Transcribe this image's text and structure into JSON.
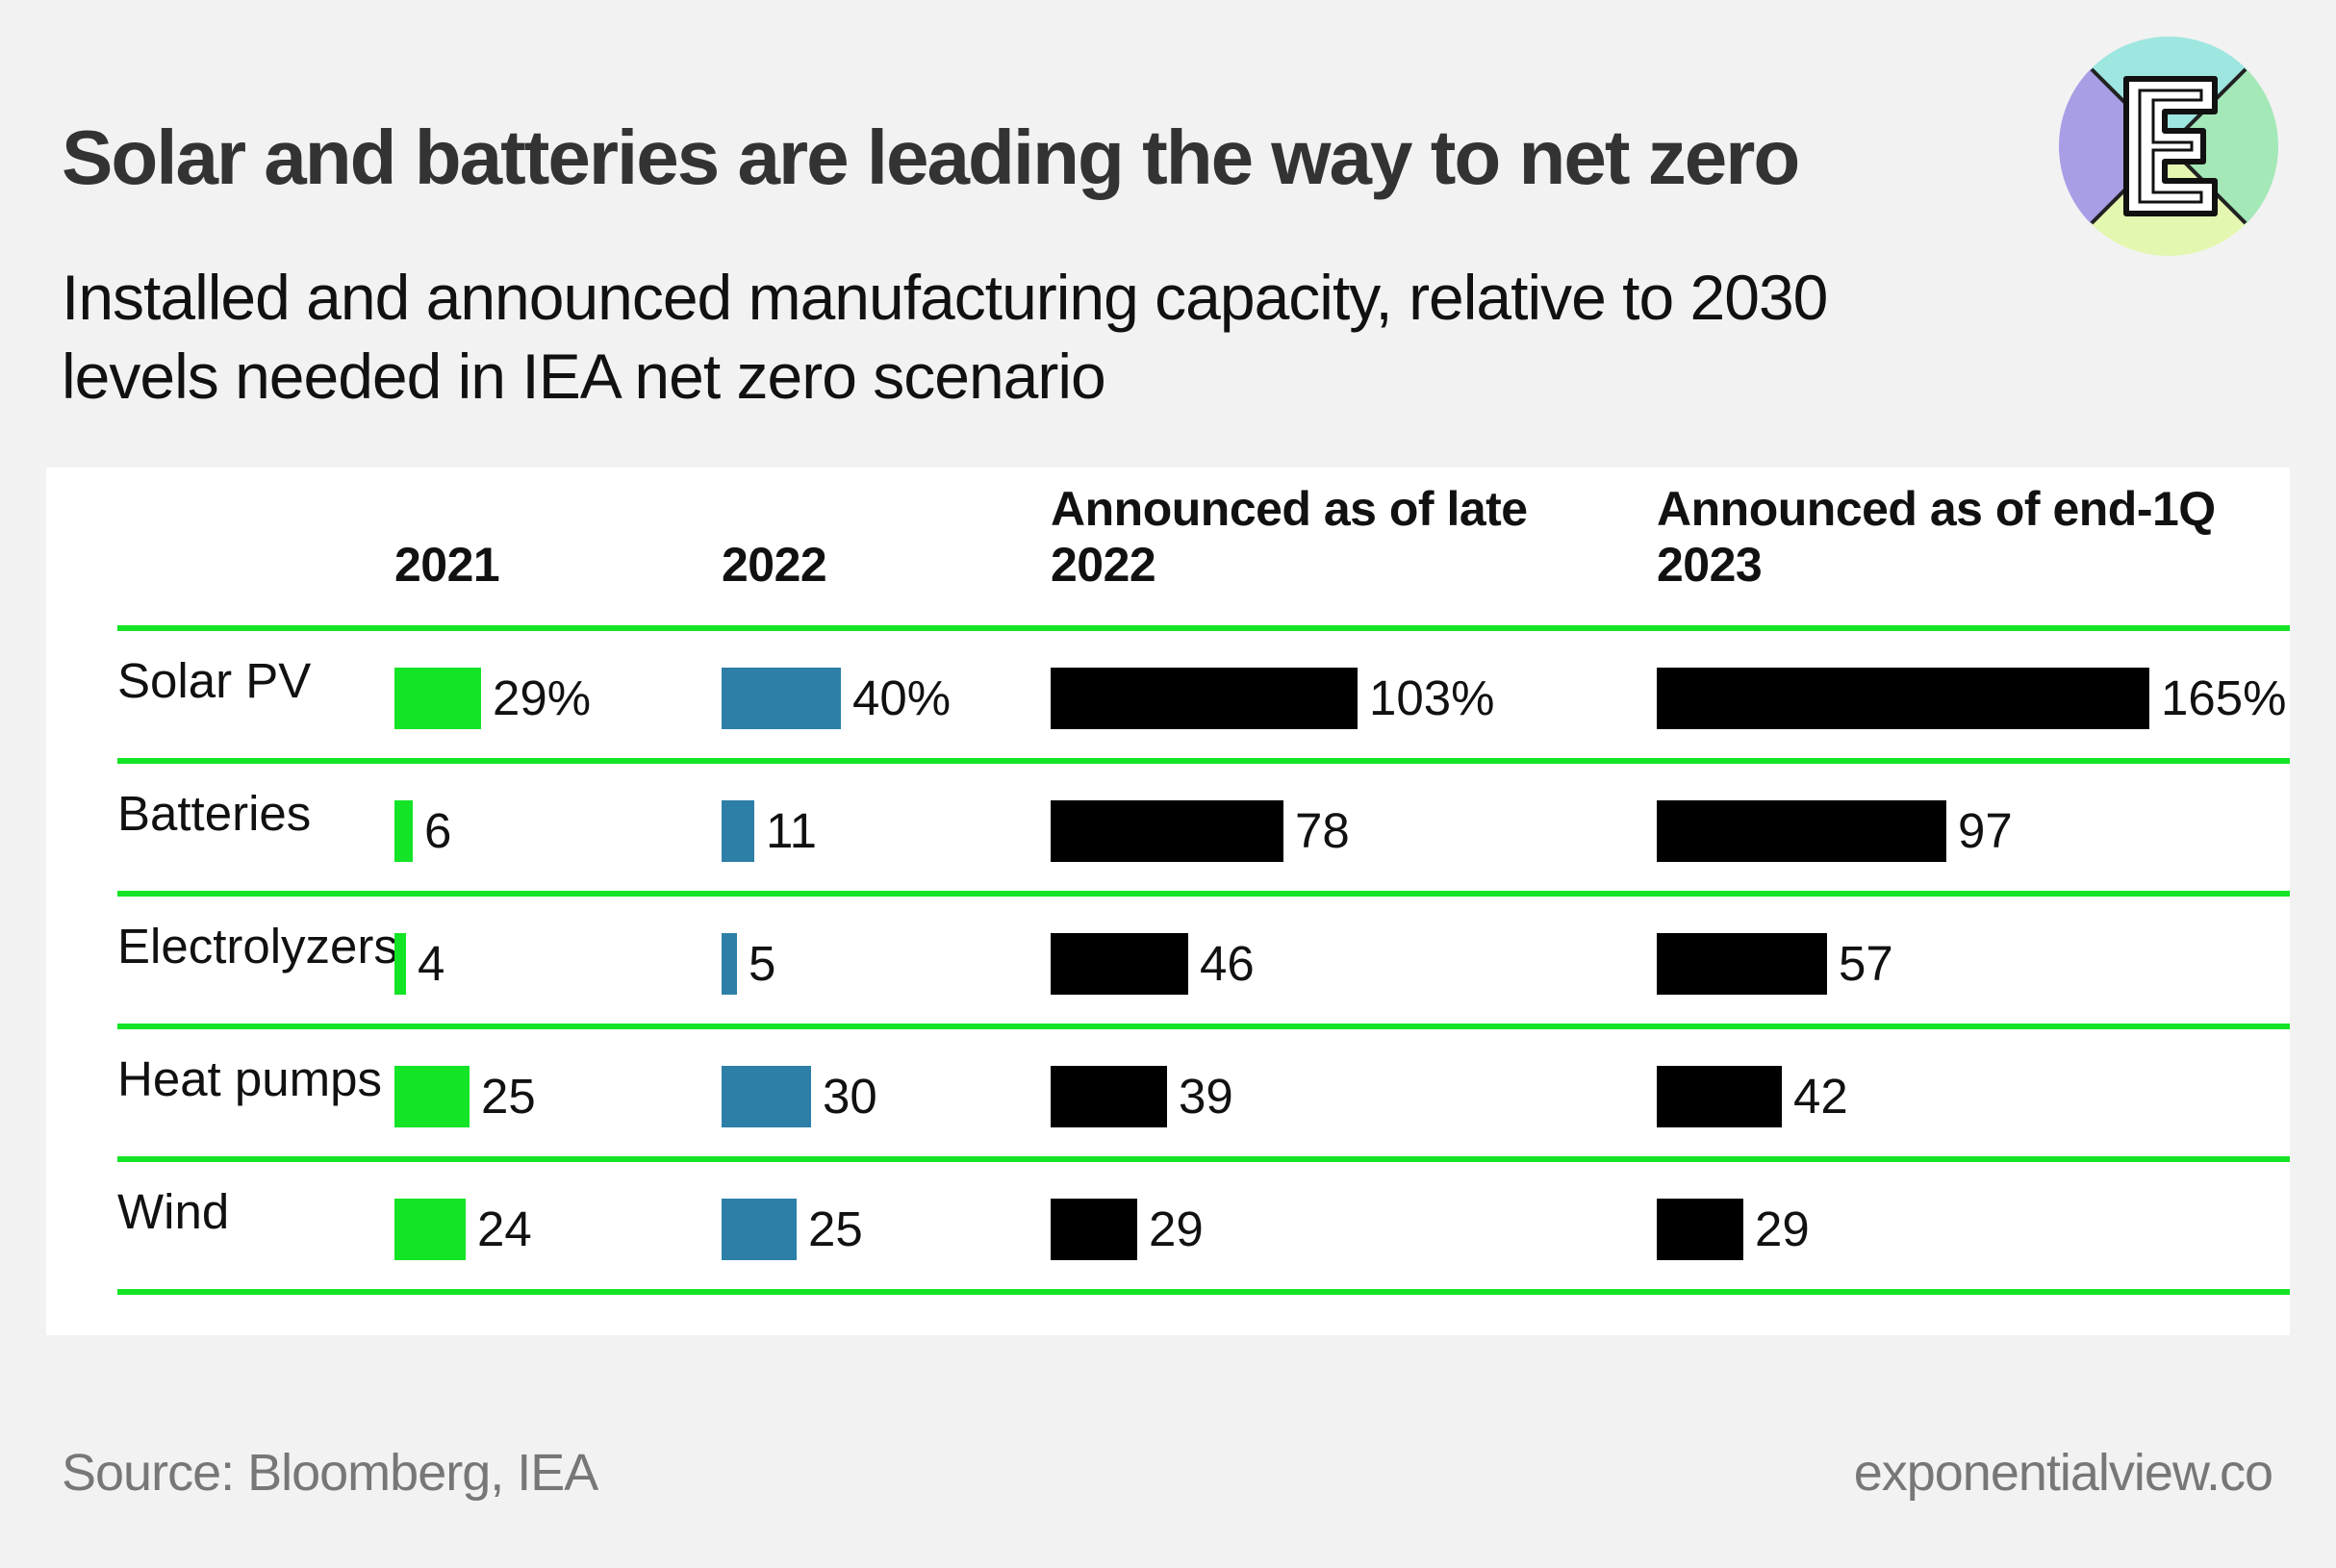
{
  "title": "Solar and batteries are leading the way to net zero",
  "subtitle": "Installed and announced manufacturing capacity, relative to 2030 levels needed in IEA net zero scenario",
  "source": "Source: Bloomberg, IEA",
  "site": "exponentialview.co",
  "logo_letter": "E",
  "colors": {
    "bar_2021": "#14e426",
    "bar_2022": "#2e7fa8",
    "bar_announced": "#000000",
    "rule": "#14e426"
  },
  "chart_data": {
    "type": "bar",
    "layout": "table-of-bars",
    "columns": [
      {
        "label1": "",
        "label2": "2021"
      },
      {
        "label1": "",
        "label2": "2022"
      },
      {
        "label1": "Announced as of late",
        "label2": "2022"
      },
      {
        "label1": "Announced as of end-1Q",
        "label2": "2023"
      }
    ],
    "categories": [
      "Solar PV",
      "Batteries",
      "Electrolyzers",
      "Heat pumps",
      "Wind"
    ],
    "series": [
      {
        "name": "2021",
        "values": [
          29,
          6,
          4,
          25,
          24
        ],
        "labels": [
          "29%",
          "6",
          "4",
          "25",
          "24"
        ]
      },
      {
        "name": "2022",
        "values": [
          40,
          11,
          5,
          30,
          25
        ],
        "labels": [
          "40%",
          "11",
          "5",
          "30",
          "25"
        ]
      },
      {
        "name": "Announced as of late 2022",
        "values": [
          103,
          78,
          46,
          39,
          29
        ],
        "labels": [
          "103%",
          "78",
          "46",
          "39",
          "29"
        ]
      },
      {
        "name": "Announced as of end-1Q 2023",
        "values": [
          165,
          97,
          57,
          42,
          29
        ],
        "labels": [
          "165%",
          "97",
          "57",
          "42",
          "29"
        ]
      }
    ],
    "unit": "%"
  }
}
